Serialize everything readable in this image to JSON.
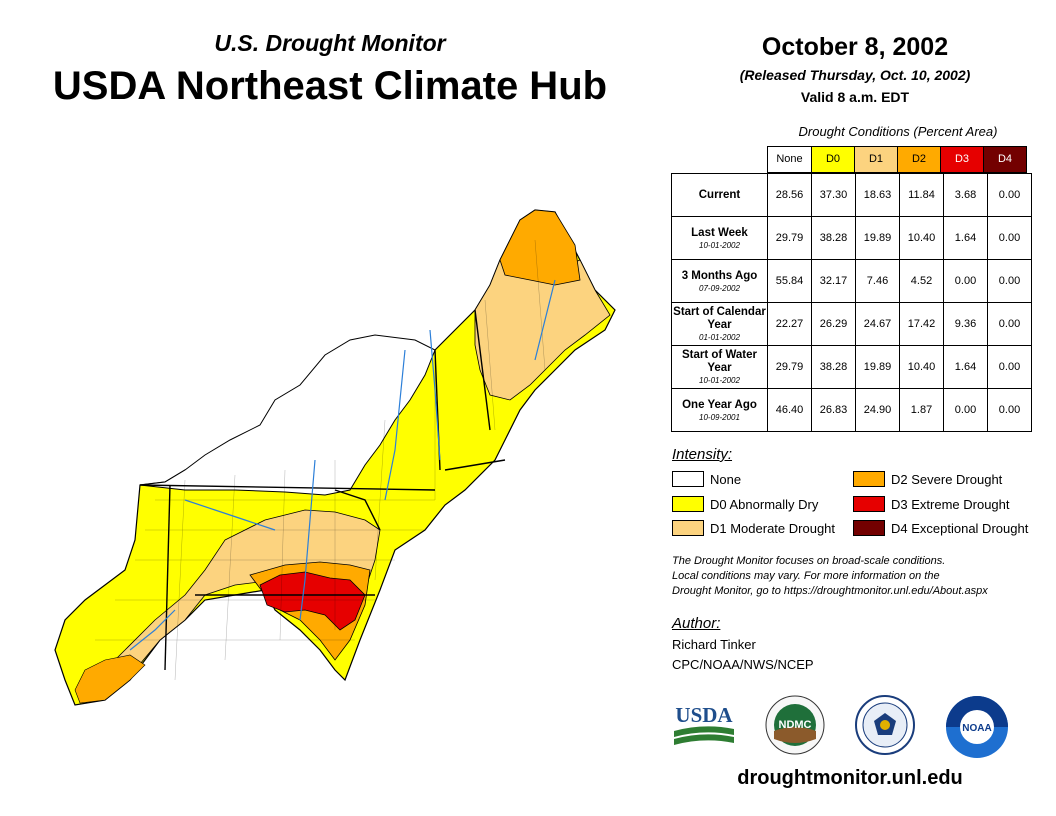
{
  "header": {
    "subtitle": "U.S. Drought Monitor",
    "title": "USDA Northeast Climate Hub",
    "date": "October 8, 2002",
    "released": "(Released Thursday, Oct. 10, 2002)",
    "valid": "Valid 8 a.m. EDT"
  },
  "conditions": {
    "caption": "Drought Conditions (Percent Area)",
    "columns": [
      {
        "label": "None",
        "color": "#ffffff",
        "text_color": "#000000"
      },
      {
        "label": "D0",
        "color": "#ffff00",
        "text_color": "#000000"
      },
      {
        "label": "D1",
        "color": "#fcd37f",
        "text_color": "#000000"
      },
      {
        "label": "D2",
        "color": "#ffaa00",
        "text_color": "#000000"
      },
      {
        "label": "D3",
        "color": "#e60000",
        "text_color": "#ffffff"
      },
      {
        "label": "D4",
        "color": "#730000",
        "text_color": "#ffffff"
      }
    ],
    "rows": [
      {
        "label": "Current",
        "date": "",
        "values": [
          "28.56",
          "37.30",
          "18.63",
          "11.84",
          "3.68",
          "0.00"
        ]
      },
      {
        "label": "Last Week",
        "date": "10-01-2002",
        "values": [
          "29.79",
          "38.28",
          "19.89",
          "10.40",
          "1.64",
          "0.00"
        ]
      },
      {
        "label": "3 Months Ago",
        "date": "07-09-2002",
        "values": [
          "55.84",
          "32.17",
          "7.46",
          "4.52",
          "0.00",
          "0.00"
        ]
      },
      {
        "label": "Start of Calendar Year",
        "date": "01-01-2002",
        "values": [
          "22.27",
          "26.29",
          "24.67",
          "17.42",
          "9.36",
          "0.00"
        ]
      },
      {
        "label": "Start of Water Year",
        "date": "10-01-2002",
        "values": [
          "29.79",
          "38.28",
          "19.89",
          "10.40",
          "1.64",
          "0.00"
        ]
      },
      {
        "label": "One Year Ago",
        "date": "10-09-2001",
        "values": [
          "46.40",
          "26.83",
          "24.90",
          "1.87",
          "0.00",
          "0.00"
        ]
      }
    ]
  },
  "legend": {
    "title": "Intensity:",
    "items": [
      {
        "label": "None",
        "color": "#ffffff"
      },
      {
        "label": "D0 Abnormally Dry",
        "color": "#ffff00"
      },
      {
        "label": "D1 Moderate Drought",
        "color": "#fcd37f"
      },
      {
        "label": "D2 Severe Drought",
        "color": "#ffaa00"
      },
      {
        "label": "D3 Extreme Drought",
        "color": "#e60000"
      },
      {
        "label": "D4 Exceptional Drought",
        "color": "#730000"
      }
    ]
  },
  "note": {
    "line1": "The Drought Monitor focuses on broad-scale conditions.",
    "line2": "Local conditions may vary. For more information on the",
    "line3": "Drought Monitor, go to https://droughtmonitor.unl.edu/About.aspx"
  },
  "author": {
    "heading": "Author:",
    "name": "Richard Tinker",
    "org": "CPC/NOAA/NWS/NCEP"
  },
  "logos": {
    "usda": "USDA",
    "ndmc": "NDMC",
    "noaa": "NOAA"
  },
  "website": "droughtmonitor.unl.edu"
}
